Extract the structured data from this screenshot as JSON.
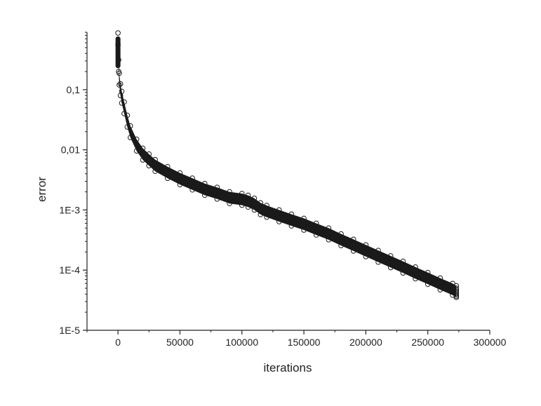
{
  "chart_data": {
    "type": "scatter",
    "xlabel": "iterations",
    "ylabel": "error",
    "xlim": [
      -25000,
      300000
    ],
    "ylim": [
      1e-05,
      0.9
    ],
    "yscale": "log",
    "grid": false,
    "xticks": [
      0,
      50000,
      100000,
      150000,
      200000,
      250000,
      300000
    ],
    "xtick_labels": [
      "0",
      "50000",
      "100000",
      "150000",
      "200000",
      "250000",
      "300000"
    ],
    "yticks": [
      1e-05,
      0.0001,
      0.001,
      0.01,
      0.1
    ],
    "ytick_labels": [
      "1E-5",
      "1E-4",
      "1E-3",
      "0,01",
      "0,1"
    ],
    "marker": "open-circle",
    "series_color": "#1a1a1a",
    "series": [
      {
        "x": [
          0,
          500,
          1000,
          2000,
          3000,
          5000,
          7500,
          10000,
          15000,
          20000,
          25000,
          30000,
          40000,
          50000,
          60000,
          70000,
          80000,
          90000,
          100000,
          105000,
          110000,
          115000,
          120000,
          130000,
          140000,
          150000,
          160000,
          170000,
          180000,
          190000,
          200000,
          210000,
          220000,
          230000,
          240000,
          250000,
          260000,
          270000,
          273000
        ],
        "y": [
          0.7,
          0.25,
          0.15,
          0.1,
          0.075,
          0.05,
          0.03,
          0.02,
          0.012,
          0.0085,
          0.0068,
          0.0055,
          0.0042,
          0.0033,
          0.0027,
          0.0022,
          0.0019,
          0.0016,
          0.0015,
          0.0014,
          0.00125,
          0.00105,
          0.00095,
          0.0008,
          0.00068,
          0.00058,
          0.00048,
          0.0004,
          0.00032,
          0.00026,
          0.00021,
          0.00017,
          0.000138,
          0.000112,
          9e-05,
          7.3e-05,
          5.9e-05,
          4.8e-05,
          4.4e-05
        ],
        "spread_upper": 0.25,
        "spread_lower": 0.2,
        "top_extent": [
          0.7,
          0.25
        ],
        "end_range": [
          3.7e-05,
          5e-05
        ]
      }
    ]
  }
}
